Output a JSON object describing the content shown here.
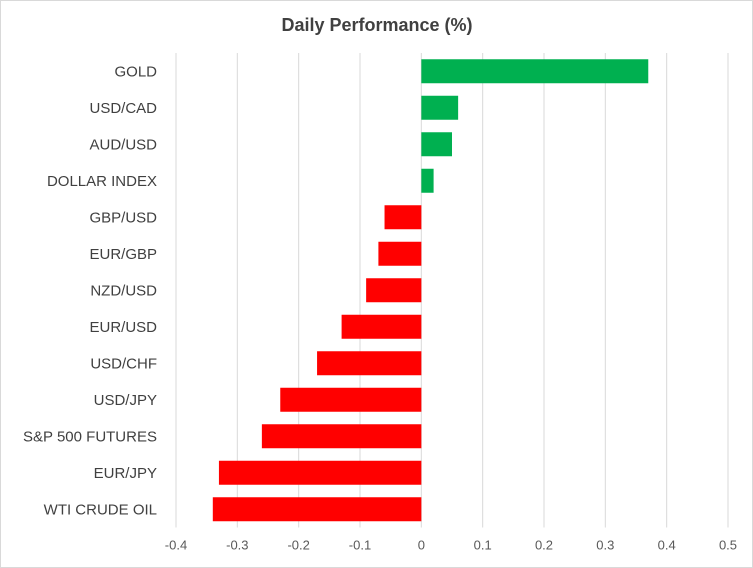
{
  "chart_data": {
    "type": "bar",
    "orientation": "horizontal",
    "title": "Daily Performance (%)",
    "xlabel": "",
    "ylabel": "",
    "xlim": [
      -0.4,
      0.5
    ],
    "xticks": [
      "-0.4",
      "-0.3",
      "-0.2",
      "-0.1",
      "0",
      "0.1",
      "0.2",
      "0.3",
      "0.4",
      "0.5"
    ],
    "grid": "vertical",
    "legend": "none",
    "positive_color": "#00b050",
    "negative_color": "#ff0000",
    "categories": [
      "GOLD",
      "USD/CAD",
      "AUD/USD",
      "DOLLAR INDEX",
      "GBP/USD",
      "EUR/GBP",
      "NZD/USD",
      "EUR/USD",
      "USD/CHF",
      "USD/JPY",
      "S&P 500 FUTURES",
      "EUR/JPY",
      "WTI CRUDE OIL"
    ],
    "values": [
      0.37,
      0.06,
      0.05,
      0.02,
      -0.06,
      -0.07,
      -0.09,
      -0.13,
      -0.17,
      -0.23,
      -0.26,
      -0.33,
      -0.34
    ]
  }
}
